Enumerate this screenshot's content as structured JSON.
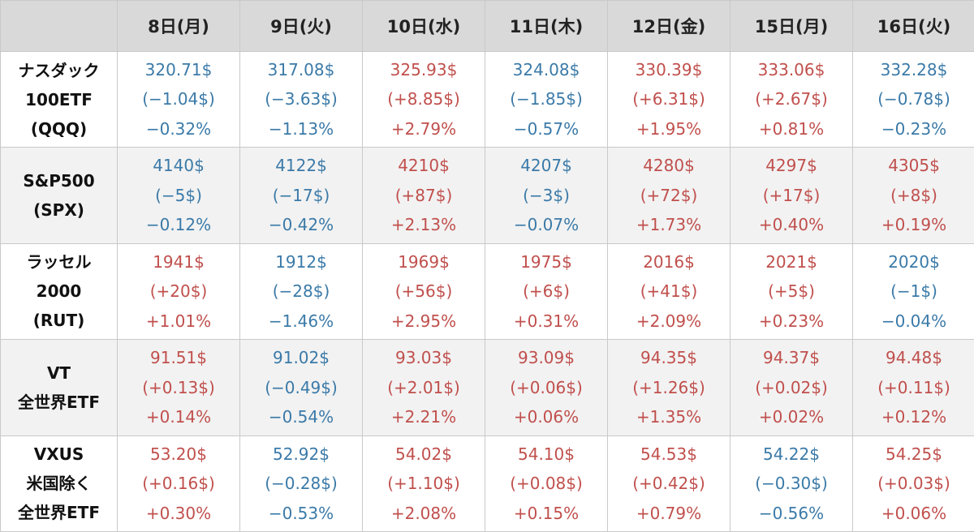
{
  "colors": {
    "up": "#c0504d",
    "down": "#3b7aa8",
    "header_bg": "#d9d9d9",
    "alt_row_bg": "#f2f2f2"
  },
  "headers": [
    "8日(月)",
    "9日(火)",
    "10日(水)",
    "11日(木)",
    "12日(金)",
    "15日(月)",
    "16日(火)"
  ],
  "rows": [
    {
      "label": [
        "ナスダック",
        "100ETF",
        "(QQQ)"
      ],
      "cells": [
        {
          "price": "320.71$",
          "change": "(−1.04$)",
          "pct": "−0.32%",
          "dir": "down"
        },
        {
          "price": "317.08$",
          "change": "(−3.63$)",
          "pct": "−1.13%",
          "dir": "down"
        },
        {
          "price": "325.93$",
          "change": "(+8.85$)",
          "pct": "+2.79%",
          "dir": "up"
        },
        {
          "price": "324.08$",
          "change": "(−1.85$)",
          "pct": "−0.57%",
          "dir": "down"
        },
        {
          "price": "330.39$",
          "change": "(+6.31$)",
          "pct": "+1.95%",
          "dir": "up"
        },
        {
          "price": "333.06$",
          "change": "(+2.67$)",
          "pct": "+0.81%",
          "dir": "up"
        },
        {
          "price": "332.28$",
          "change": "(−0.78$)",
          "pct": "−0.23%",
          "dir": "down"
        }
      ]
    },
    {
      "label": [
        "S&P500",
        "(SPX)"
      ],
      "cells": [
        {
          "price": "4140$",
          "change": "(−5$)",
          "pct": "−0.12%",
          "dir": "down"
        },
        {
          "price": "4122$",
          "change": "(−17$)",
          "pct": "−0.42%",
          "dir": "down"
        },
        {
          "price": "4210$",
          "change": "(+87$)",
          "pct": "+2.13%",
          "dir": "up"
        },
        {
          "price": "4207$",
          "change": "(−3$)",
          "pct": "−0.07%",
          "dir": "down"
        },
        {
          "price": "4280$",
          "change": "(+72$)",
          "pct": "+1.73%",
          "dir": "up"
        },
        {
          "price": "4297$",
          "change": "(+17$)",
          "pct": "+0.40%",
          "dir": "up"
        },
        {
          "price": "4305$",
          "change": "(+8$)",
          "pct": "+0.19%",
          "dir": "up"
        }
      ]
    },
    {
      "label": [
        "ラッセル",
        "2000",
        "(RUT)"
      ],
      "cells": [
        {
          "price": "1941$",
          "change": "(+20$)",
          "pct": "+1.01%",
          "dir": "up"
        },
        {
          "price": "1912$",
          "change": "(−28$)",
          "pct": "−1.46%",
          "dir": "down"
        },
        {
          "price": "1969$",
          "change": "(+56$)",
          "pct": "+2.95%",
          "dir": "up"
        },
        {
          "price": "1975$",
          "change": "(+6$)",
          "pct": "+0.31%",
          "dir": "up"
        },
        {
          "price": "2016$",
          "change": "(+41$)",
          "pct": "+2.09%",
          "dir": "up"
        },
        {
          "price": "2021$",
          "change": "(+5$)",
          "pct": "+0.23%",
          "dir": "up"
        },
        {
          "price": "2020$",
          "change": "(−1$)",
          "pct": "−0.04%",
          "dir": "down"
        }
      ]
    },
    {
      "label": [
        "VT",
        "全世界ETF"
      ],
      "cells": [
        {
          "price": "91.51$",
          "change": "(+0.13$)",
          "pct": "+0.14%",
          "dir": "up"
        },
        {
          "price": "91.02$",
          "change": "(−0.49$)",
          "pct": "−0.54%",
          "dir": "down"
        },
        {
          "price": "93.03$",
          "change": "(+2.01$)",
          "pct": "+2.21%",
          "dir": "up"
        },
        {
          "price": "93.09$",
          "change": "(+0.06$)",
          "pct": "+0.06%",
          "dir": "up"
        },
        {
          "price": "94.35$",
          "change": "(+1.26$)",
          "pct": "+1.35%",
          "dir": "up"
        },
        {
          "price": "94.37$",
          "change": "(+0.02$)",
          "pct": "+0.02%",
          "dir": "up"
        },
        {
          "price": "94.48$",
          "change": "(+0.11$)",
          "pct": "+0.12%",
          "dir": "up"
        }
      ]
    },
    {
      "label": [
        "VXUS",
        "米国除く",
        "全世界ETF"
      ],
      "cells": [
        {
          "price": "53.20$",
          "change": "(+0.16$)",
          "pct": "+0.30%",
          "dir": "up"
        },
        {
          "price": "52.92$",
          "change": "(−0.28$)",
          "pct": "−0.53%",
          "dir": "down"
        },
        {
          "price": "54.02$",
          "change": "(+1.10$)",
          "pct": "+2.08%",
          "dir": "up"
        },
        {
          "price": "54.10$",
          "change": "(+0.08$)",
          "pct": "+0.15%",
          "dir": "up"
        },
        {
          "price": "54.53$",
          "change": "(+0.42$)",
          "pct": "+0.79%",
          "dir": "up"
        },
        {
          "price": "54.22$",
          "change": "(−0.30$)",
          "pct": "−0.56%",
          "dir": "down"
        },
        {
          "price": "54.25$",
          "change": "(+0.03$)",
          "pct": "+0.06%",
          "dir": "up"
        }
      ]
    }
  ]
}
